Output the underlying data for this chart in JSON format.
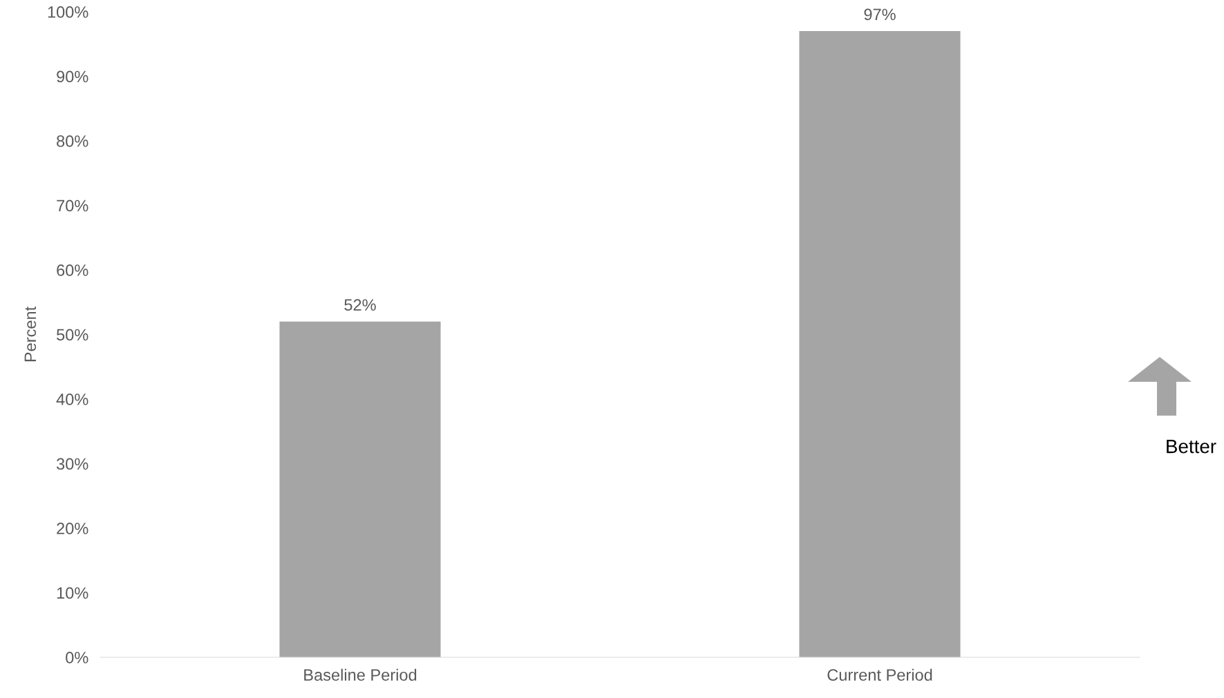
{
  "chart_data": {
    "type": "bar",
    "ylabel": "Percent",
    "categories": [
      "Baseline Period",
      "Current Period"
    ],
    "values": [
      52,
      97
    ],
    "color": "#a5a5a5",
    "value_labels": [
      "52%",
      "97%"
    ],
    "ylim": [
      0,
      100
    ],
    "yticks": [
      {
        "value": 0,
        "label": "0%"
      },
      {
        "value": 10,
        "label": "10%"
      },
      {
        "value": 20,
        "label": "20%"
      },
      {
        "value": 30,
        "label": "30%"
      },
      {
        "value": 40,
        "label": "40%"
      },
      {
        "value": 50,
        "label": "50%"
      },
      {
        "value": 60,
        "label": "60%"
      },
      {
        "value": 70,
        "label": "70%"
      },
      {
        "value": 80,
        "label": "80%"
      },
      {
        "value": 90,
        "label": "90%"
      },
      {
        "value": 100,
        "label": "100%"
      }
    ],
    "grid": false,
    "legend": false,
    "annotations": [
      "Better"
    ]
  }
}
